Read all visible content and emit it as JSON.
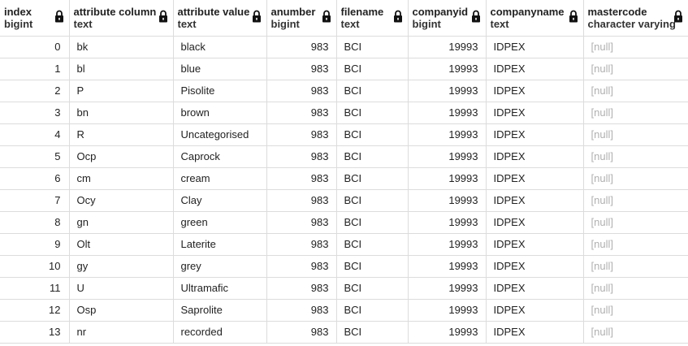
{
  "columns": [
    {
      "name": "index",
      "type": "bigint"
    },
    {
      "name": "attribute column",
      "type": "text"
    },
    {
      "name": "attribute value",
      "type": "text"
    },
    {
      "name": "anumber",
      "type": "bigint"
    },
    {
      "name": "filename",
      "type": "text"
    },
    {
      "name": "companyid",
      "type": "bigint"
    },
    {
      "name": "companyname",
      "type": "text"
    },
    {
      "name": "mastercode",
      "type": "character varying"
    }
  ],
  "rows": [
    [
      "0",
      "bk",
      "black",
      "983",
      "BCI",
      "19993",
      "IDPEX",
      "[null]"
    ],
    [
      "1",
      "bl",
      "blue",
      "983",
      "BCI",
      "19993",
      "IDPEX",
      "[null]"
    ],
    [
      "2",
      "P",
      "Pisolite",
      "983",
      "BCI",
      "19993",
      "IDPEX",
      "[null]"
    ],
    [
      "3",
      "bn",
      "brown",
      "983",
      "BCI",
      "19993",
      "IDPEX",
      "[null]"
    ],
    [
      "4",
      "R",
      "Uncategorised",
      "983",
      "BCI",
      "19993",
      "IDPEX",
      "[null]"
    ],
    [
      "5",
      "Ocp",
      "Caprock",
      "983",
      "BCI",
      "19993",
      "IDPEX",
      "[null]"
    ],
    [
      "6",
      "cm",
      "cream",
      "983",
      "BCI",
      "19993",
      "IDPEX",
      "[null]"
    ],
    [
      "7",
      "Ocy",
      "Clay",
      "983",
      "BCI",
      "19993",
      "IDPEX",
      "[null]"
    ],
    [
      "8",
      "gn",
      "green",
      "983",
      "BCI",
      "19993",
      "IDPEX",
      "[null]"
    ],
    [
      "9",
      "Olt",
      "Laterite",
      "983",
      "BCI",
      "19993",
      "IDPEX",
      "[null]"
    ],
    [
      "10",
      "gy",
      "grey",
      "983",
      "BCI",
      "19993",
      "IDPEX",
      "[null]"
    ],
    [
      "11",
      "U",
      "Ultramafic",
      "983",
      "BCI",
      "19993",
      "IDPEX",
      "[null]"
    ],
    [
      "12",
      "Osp",
      "Saprolite",
      "983",
      "BCI",
      "19993",
      "IDPEX",
      "[null]"
    ],
    [
      "13",
      "nr",
      "recorded",
      "983",
      "BCI",
      "19993",
      "IDPEX",
      "[null]"
    ]
  ],
  "icons": {
    "column_lock": "lock-icon"
  },
  "colors": {
    "grid_line": "#dcdcdc",
    "null_text": "#b0b0b0"
  }
}
